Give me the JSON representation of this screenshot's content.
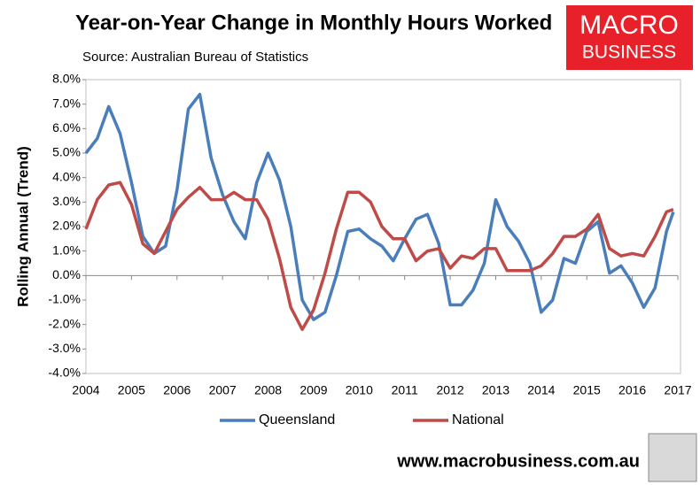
{
  "chart_data": {
    "type": "line",
    "title": "Year-on-Year Change in Monthly Hours Worked",
    "subtitle": "Source: Australian Bureau of Statistics",
    "y_label": "Rolling Annual (Trend)",
    "logo_top": "MACRO",
    "logo_bottom": "BUSINESS",
    "website": "www.macrobusiness.com.au",
    "x": [
      2004,
      2004.25,
      2004.5,
      2004.75,
      2005,
      2005.25,
      2005.5,
      2005.75,
      2006,
      2006.25,
      2006.5,
      2006.75,
      2007,
      2007.25,
      2007.5,
      2007.75,
      2008,
      2008.25,
      2008.5,
      2008.75,
      2009,
      2009.25,
      2009.5,
      2009.75,
      2010,
      2010.25,
      2010.5,
      2010.75,
      2011,
      2011.25,
      2011.5,
      2011.75,
      2012,
      2012.25,
      2012.5,
      2012.75,
      2013,
      2013.25,
      2013.5,
      2013.75,
      2014,
      2014.25,
      2014.5,
      2014.75,
      2015,
      2015.25,
      2015.5,
      2015.75,
      2016,
      2016.25,
      2016.5,
      2016.75,
      2016.9
    ],
    "series": [
      {
        "name": "Queensland",
        "color": "#4a7ebb",
        "values": [
          5.0,
          5.6,
          6.9,
          5.8,
          3.8,
          1.6,
          0.9,
          1.2,
          3.5,
          6.8,
          7.4,
          4.8,
          3.3,
          2.2,
          1.5,
          3.8,
          5.0,
          3.9,
          2.0,
          -1.0,
          -1.8,
          -1.5,
          0.0,
          1.8,
          1.9,
          1.5,
          1.2,
          0.6,
          1.5,
          2.3,
          2.5,
          1.3,
          -1.2,
          -1.2,
          -0.6,
          0.5,
          3.1,
          2.0,
          1.4,
          0.5,
          -1.5,
          -1.0,
          0.7,
          0.5,
          1.8,
          2.2,
          0.1,
          0.4,
          -0.3,
          -1.3,
          -0.5,
          1.8,
          2.6
        ]
      },
      {
        "name": "National",
        "color": "#be4b48",
        "values": [
          1.9,
          3.1,
          3.7,
          3.8,
          2.9,
          1.3,
          0.9,
          1.8,
          2.7,
          3.2,
          3.6,
          3.1,
          3.1,
          3.4,
          3.1,
          3.1,
          2.3,
          0.7,
          -1.3,
          -2.2,
          -1.4,
          0.1,
          1.9,
          3.4,
          3.4,
          3.0,
          2.0,
          1.5,
          1.5,
          0.6,
          1.0,
          1.1,
          0.3,
          0.8,
          0.7,
          1.1,
          1.1,
          0.2,
          0.2,
          0.2,
          0.4,
          0.9,
          1.6,
          1.6,
          1.9,
          2.5,
          1.1,
          0.8,
          0.9,
          0.8,
          1.6,
          2.6,
          2.7
        ]
      }
    ],
    "xlim": [
      2004,
      2017
    ],
    "xticks": [
      2004,
      2005,
      2006,
      2007,
      2008,
      2009,
      2010,
      2011,
      2012,
      2013,
      2014,
      2015,
      2016,
      2017
    ],
    "ylim": [
      -4,
      8
    ],
    "yticks": [
      {
        "value": 8,
        "label": "8.0%"
      },
      {
        "value": 7,
        "label": "7.0%"
      },
      {
        "value": 6,
        "label": "6.0%"
      },
      {
        "value": 5,
        "label": "5.0%"
      },
      {
        "value": 4,
        "label": "4.0%"
      },
      {
        "value": 3,
        "label": "3.0%"
      },
      {
        "value": 2,
        "label": "2.0%"
      },
      {
        "value": 1,
        "label": "1.0%"
      },
      {
        "value": 0,
        "label": "0.0%"
      },
      {
        "value": -1,
        "label": "-1.0%"
      },
      {
        "value": -2,
        "label": "-2.0%"
      },
      {
        "value": -3,
        "label": "-3.0%"
      },
      {
        "value": -4,
        "label": "-4.0%"
      }
    ],
    "grid": false,
    "legend": "bottom"
  }
}
